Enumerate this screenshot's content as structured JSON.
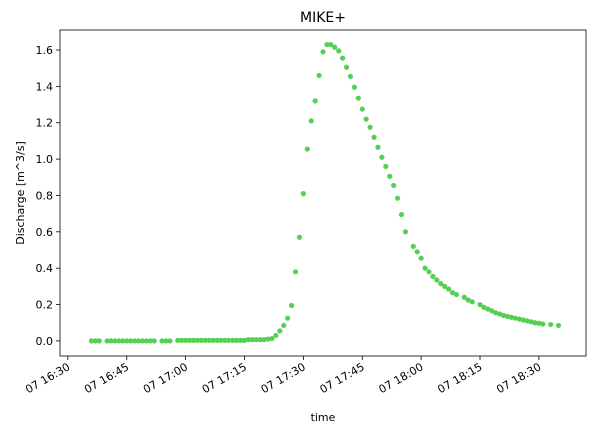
{
  "chart_data": {
    "type": "scatter",
    "title": "MIKE+",
    "xlabel": "time",
    "ylabel": "Discharge [m^3/s]",
    "x_unit": "minutes of the displayed day (07, hh:mm)",
    "xlim": [
      "07 16:28",
      "07 18:42"
    ],
    "ylim": [
      -0.083,
      1.71
    ],
    "x_ticks": [
      "07 16:30",
      "07 16:45",
      "07 17:00",
      "07 17:15",
      "07 17:30",
      "07 17:45",
      "07 18:00",
      "07 18:15",
      "07 18:30"
    ],
    "y_ticks": [
      "0.0",
      "0.2",
      "0.4",
      "0.6",
      "0.8",
      "1.0",
      "1.2",
      "1.4",
      "1.6"
    ],
    "grid": false,
    "marker_color": "#55d055",
    "series": [
      {
        "name": "",
        "points": [
          [
            "07 16:36",
            0.0
          ],
          [
            "07 16:37",
            0.0
          ],
          [
            "07 16:38",
            0.0
          ],
          [
            "07 16:40",
            0.0
          ],
          [
            "07 16:41",
            0.0
          ],
          [
            "07 16:42",
            0.0
          ],
          [
            "07 16:43",
            0.0
          ],
          [
            "07 16:44",
            0.0
          ],
          [
            "07 16:45",
            0.0
          ],
          [
            "07 16:46",
            0.0
          ],
          [
            "07 16:47",
            0.0
          ],
          [
            "07 16:48",
            0.0
          ],
          [
            "07 16:49",
            0.0
          ],
          [
            "07 16:50",
            0.0
          ],
          [
            "07 16:51",
            0.0
          ],
          [
            "07 16:52",
            0.0
          ],
          [
            "07 16:54",
            0.0
          ],
          [
            "07 16:55",
            0.0
          ],
          [
            "07 16:56",
            0.0
          ],
          [
            "07 16:58",
            0.003
          ],
          [
            "07 16:59",
            0.003
          ],
          [
            "07 17:00",
            0.003
          ],
          [
            "07 17:01",
            0.003
          ],
          [
            "07 17:02",
            0.003
          ],
          [
            "07 17:03",
            0.003
          ],
          [
            "07 17:04",
            0.003
          ],
          [
            "07 17:05",
            0.003
          ],
          [
            "07 17:06",
            0.003
          ],
          [
            "07 17:07",
            0.003
          ],
          [
            "07 17:08",
            0.003
          ],
          [
            "07 17:09",
            0.003
          ],
          [
            "07 17:10",
            0.003
          ],
          [
            "07 17:11",
            0.003
          ],
          [
            "07 17:12",
            0.003
          ],
          [
            "07 17:13",
            0.003
          ],
          [
            "07 17:14",
            0.003
          ],
          [
            "07 17:15",
            0.003
          ],
          [
            "07 17:16",
            0.007
          ],
          [
            "07 17:17",
            0.007
          ],
          [
            "07 17:18",
            0.007
          ],
          [
            "07 17:19",
            0.007
          ],
          [
            "07 17:20",
            0.007
          ],
          [
            "07 17:21",
            0.01
          ],
          [
            "07 17:22",
            0.013
          ],
          [
            "07 17:23",
            0.03
          ],
          [
            "07 17:24",
            0.055
          ],
          [
            "07 17:25",
            0.085
          ],
          [
            "07 17:26",
            0.125
          ],
          [
            "07 17:27",
            0.195
          ],
          [
            "07 17:28",
            0.38
          ],
          [
            "07 17:29",
            0.57
          ],
          [
            "07 17:30",
            0.81
          ],
          [
            "07 17:31",
            1.055
          ],
          [
            "07 17:32",
            1.21
          ],
          [
            "07 17:33",
            1.32
          ],
          [
            "07 17:34",
            1.46
          ],
          [
            "07 17:35",
            1.59
          ],
          [
            "07 17:36",
            1.63
          ],
          [
            "07 17:37",
            1.63
          ],
          [
            "07 17:38",
            1.615
          ],
          [
            "07 17:39",
            1.595
          ],
          [
            "07 17:40",
            1.555
          ],
          [
            "07 17:41",
            1.505
          ],
          [
            "07 17:42",
            1.455
          ],
          [
            "07 17:43",
            1.395
          ],
          [
            "07 17:44",
            1.335
          ],
          [
            "07 17:45",
            1.275
          ],
          [
            "07 17:46",
            1.22
          ],
          [
            "07 17:47",
            1.175
          ],
          [
            "07 17:48",
            1.12
          ],
          [
            "07 17:49",
            1.065
          ],
          [
            "07 17:50",
            1.01
          ],
          [
            "07 17:51",
            0.96
          ],
          [
            "07 17:52",
            0.905
          ],
          [
            "07 17:53",
            0.855
          ],
          [
            "07 17:54",
            0.785
          ],
          [
            "07 17:55",
            0.695
          ],
          [
            "07 17:56",
            0.6
          ],
          [
            "07 17:58",
            0.52
          ],
          [
            "07 17:59",
            0.49
          ],
          [
            "07 18:00",
            0.455
          ],
          [
            "07 18:01",
            0.4
          ],
          [
            "07 18:02",
            0.38
          ],
          [
            "07 18:03",
            0.355
          ],
          [
            "07 18:04",
            0.335
          ],
          [
            "07 18:05",
            0.315
          ],
          [
            "07 18:06",
            0.3
          ],
          [
            "07 18:07",
            0.285
          ],
          [
            "07 18:08",
            0.265
          ],
          [
            "07 18:09",
            0.255
          ],
          [
            "07 18:11",
            0.24
          ],
          [
            "07 18:12",
            0.225
          ],
          [
            "07 18:13",
            0.215
          ],
          [
            "07 18:15",
            0.2
          ],
          [
            "07 18:16",
            0.185
          ],
          [
            "07 18:17",
            0.175
          ],
          [
            "07 18:18",
            0.165
          ],
          [
            "07 18:19",
            0.155
          ],
          [
            "07 18:20",
            0.148
          ],
          [
            "07 18:21",
            0.14
          ],
          [
            "07 18:22",
            0.135
          ],
          [
            "07 18:23",
            0.13
          ],
          [
            "07 18:24",
            0.125
          ],
          [
            "07 18:25",
            0.12
          ],
          [
            "07 18:26",
            0.115
          ],
          [
            "07 18:27",
            0.11
          ],
          [
            "07 18:28",
            0.105
          ],
          [
            "07 18:29",
            0.1
          ],
          [
            "07 18:30",
            0.097
          ],
          [
            "07 18:31",
            0.093
          ],
          [
            "07 18:33",
            0.09
          ],
          [
            "07 18:35",
            0.085
          ]
        ]
      }
    ]
  }
}
